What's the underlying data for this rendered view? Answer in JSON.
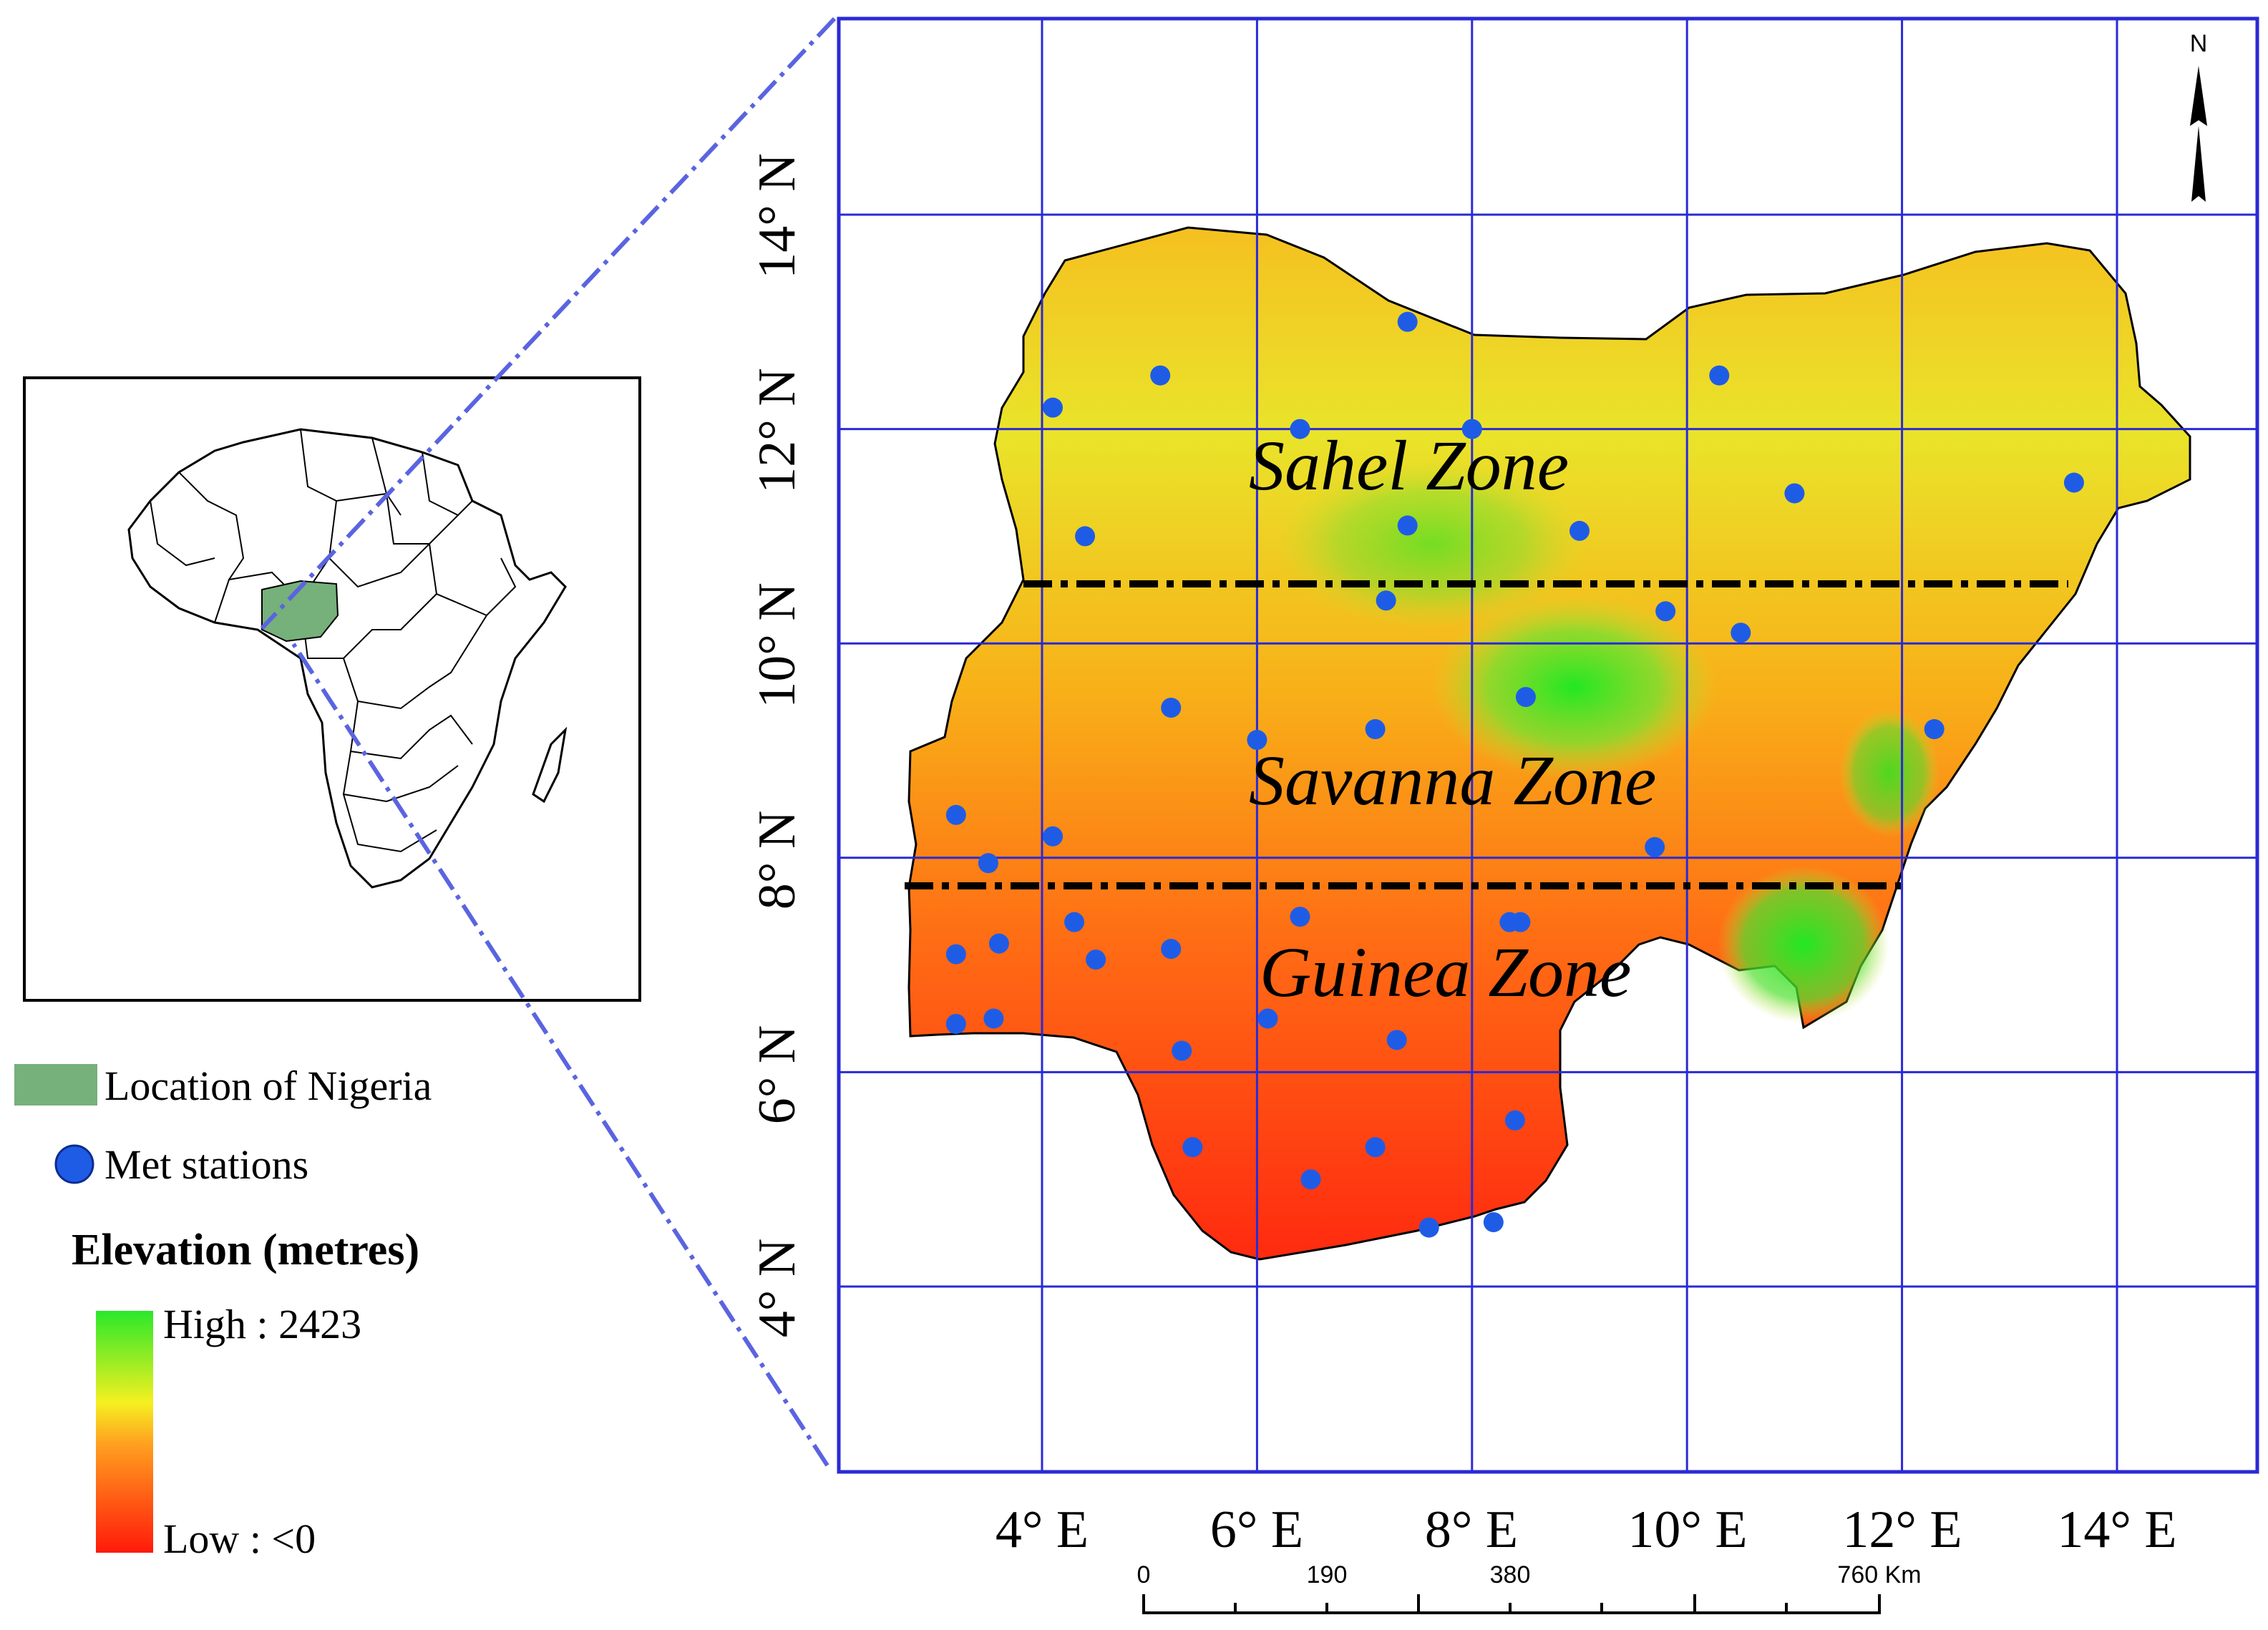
{
  "map": {
    "lon_ticks": [
      "4° E",
      "6° E",
      "8° E",
      "10° E",
      "12° E",
      "14° E"
    ],
    "lat_ticks": [
      "4° N",
      "6° N",
      "8° N",
      "10° N",
      "12° N",
      "14° N"
    ],
    "zones": [
      "Sahel Zone",
      "Savanna Zone",
      "Guinea Zone"
    ],
    "north_label": "N",
    "scale_bar": {
      "labels": [
        "0",
        "190",
        "380",
        "760 Km"
      ]
    },
    "stations": [
      [
        7.4,
        13.0
      ],
      [
        5.1,
        12.5
      ],
      [
        4.1,
        12.2
      ],
      [
        6.4,
        12.0
      ],
      [
        8.0,
        12.0
      ],
      [
        10.3,
        12.5
      ],
      [
        11.0,
        11.4
      ],
      [
        13.6,
        11.5
      ],
      [
        4.4,
        11.0
      ],
      [
        7.4,
        11.1
      ],
      [
        9.0,
        11.05
      ],
      [
        7.2,
        10.4
      ],
      [
        9.8,
        10.3
      ],
      [
        10.5,
        10.1
      ],
      [
        5.2,
        9.4
      ],
      [
        6.0,
        9.1
      ],
      [
        7.1,
        9.2
      ],
      [
        8.5,
        9.5
      ],
      [
        12.3,
        9.2
      ],
      [
        3.2,
        8.4
      ],
      [
        4.1,
        8.2
      ],
      [
        3.5,
        7.95
      ],
      [
        9.7,
        8.1
      ],
      [
        4.3,
        7.4
      ],
      [
        6.4,
        7.45
      ],
      [
        8.35,
        7.4
      ],
      [
        8.45,
        7.4
      ],
      [
        3.2,
        7.1
      ],
      [
        3.6,
        7.2
      ],
      [
        4.5,
        7.05
      ],
      [
        5.2,
        7.15
      ],
      [
        3.2,
        6.45
      ],
      [
        3.55,
        6.5
      ],
      [
        5.3,
        6.2
      ],
      [
        6.1,
        6.5
      ],
      [
        7.3,
        6.3
      ],
      [
        8.4,
        5.55
      ],
      [
        5.4,
        5.3
      ],
      [
        7.1,
        5.3
      ],
      [
        6.5,
        5.0
      ],
      [
        7.6,
        4.55
      ],
      [
        8.2,
        4.6
      ]
    ]
  },
  "legend": {
    "location_label": "Location of Nigeria",
    "stations_label": "Met stations",
    "elevation_title": "Elevation (metres)",
    "high_label": "High : 2423",
    "low_label": "Low : <0"
  },
  "colors": {
    "grid": "#2a2ad6",
    "station": "#1f5ce6",
    "nigeria_locator": "#76b07a",
    "elevation_high": "#2ae82a",
    "elevation_mid": "#f5f020",
    "elevation_low": "#ff1a0a",
    "zone_line": "#000000"
  }
}
